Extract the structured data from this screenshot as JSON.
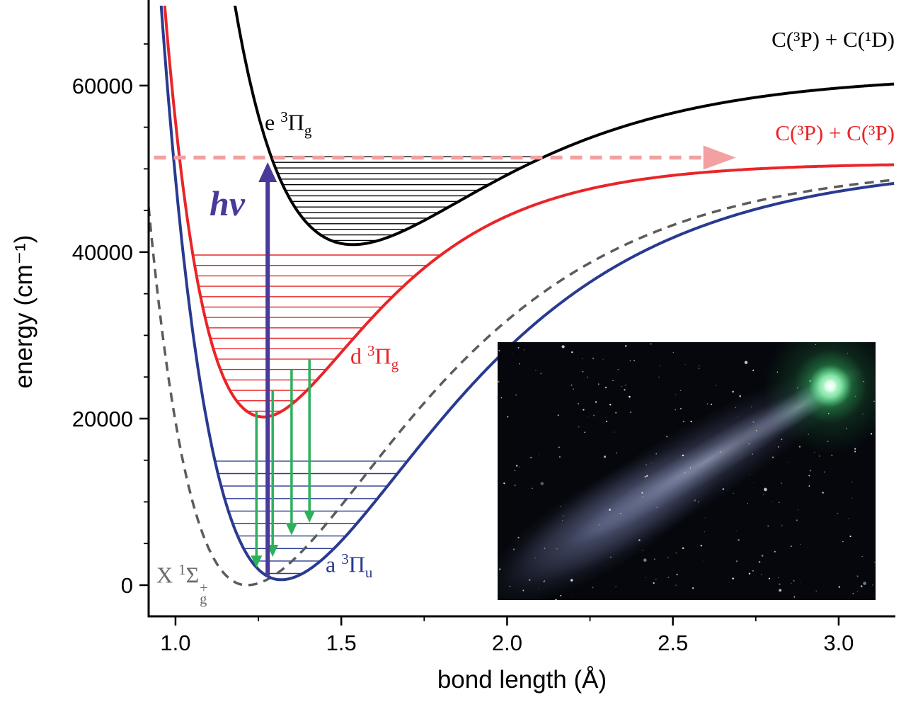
{
  "chart_data": {
    "type": "line",
    "title": "",
    "xlabel": "bond length (Å)",
    "ylabel": "energy (cm⁻¹)",
    "xlim": [
      0.919,
      3.171
    ],
    "ylim": [
      -3745,
      69600
    ],
    "x_ticks": [
      1.0,
      1.5,
      2.0,
      2.5,
      3.0
    ],
    "x_tick_labels": [
      "1.0",
      "1.5",
      "2.0",
      "2.5",
      "3.0"
    ],
    "x_minor_ticks": [
      1.25,
      1.75,
      2.25,
      2.75
    ],
    "y_ticks": [
      0,
      20000,
      40000,
      60000
    ],
    "y_tick_labels": [
      "0",
      "20000",
      "40000",
      "60000"
    ],
    "y_minor_ticks": [
      5000,
      10000,
      15000,
      25000,
      30000,
      35000,
      45000,
      50000,
      55000,
      65000
    ],
    "curve_model": "V(r) = T0 + De*(1-exp(-a*(r-re)))^2, separate a for inner/outer wall",
    "series": [
      {
        "id": "X",
        "name": "X ¹Σg⁺ ground state",
        "color": "#5c5c5c",
        "width": 3.5,
        "dash": "13 9",
        "morse": {
          "re": 1.215,
          "T0": 0,
          "De": 50700,
          "a_in": 2.25,
          "a_out": 2.0
        }
      },
      {
        "id": "a",
        "name": "a ³Πu",
        "color": "#293a90",
        "width": 4,
        "morse": {
          "re": 1.318,
          "T0": 650,
          "De": 50050,
          "a_in": 2.15,
          "a_out": 2.0
        }
      },
      {
        "id": "d",
        "name": "d ³Πg",
        "color": "#e92528",
        "width": 4,
        "morse": {
          "re": 1.266,
          "T0": 20200,
          "De": 30500,
          "a_in": 2.75,
          "a_out": 3.0
        }
      },
      {
        "id": "e",
        "name": "e ³Πg",
        "color": "#000000",
        "width": 4,
        "morse": {
          "re": 1.535,
          "T0": 40900,
          "De": 20400,
          "a_in": 2.2,
          "a_out": 2.2
        }
      }
    ],
    "vibrational_levels": [
      {
        "state": "a",
        "energies": [
          1400,
          2900,
          4400,
          5900,
          7400,
          8900,
          10400,
          11900,
          13400,
          14900
        ]
      },
      {
        "state": "d",
        "energies": [
          20900,
          22150,
          23400,
          24650,
          25900,
          27150,
          28400,
          29650,
          30900,
          32150,
          33400,
          34650,
          35900,
          37150,
          38400,
          39650
        ]
      },
      {
        "state": "e",
        "energies": [
          41400,
          42070,
          42740,
          43410,
          44080,
          44750,
          45420,
          46090,
          46760,
          47430,
          48100,
          48770,
          49440,
          50110,
          50780,
          51450
        ]
      }
    ],
    "arrows": {
      "excitation": {
        "label": "hν",
        "r": 1.278,
        "E_from": 950,
        "E_to": 50800,
        "color": "#473a99"
      },
      "emission_color": "#2cb05c",
      "emission": [
        {
          "r": 1.244,
          "E_from": 20900,
          "E_to": 2100
        },
        {
          "r": 1.293,
          "E_from": 23400,
          "E_to": 3400
        },
        {
          "r": 1.35,
          "E_from": 25900,
          "E_to": 6000
        },
        {
          "r": 1.404,
          "E_from": 27150,
          "E_to": 7500
        }
      ],
      "dissociation": {
        "E": 51350,
        "r_from": 0.935,
        "r_to": 2.69,
        "color": "#f2a0a0"
      }
    },
    "asymptote_labels": [
      {
        "text": "C(³P) + C(¹D)",
        "color": "#000000"
      },
      {
        "text": "C(³P) + C(³P)",
        "color": "#e92528"
      }
    ],
    "state_labels": {
      "e": {
        "pre": "e ",
        "sup": "3",
        "sym": "Π",
        "sub": "g"
      },
      "d": {
        "pre": "d ",
        "sup": "3",
        "sym": "Π",
        "sub": "g"
      },
      "a": {
        "pre": "a ",
        "sup": "3",
        "sym": "Π",
        "sub": "u"
      },
      "X": {
        "pre": "X ",
        "sup": "1",
        "sym": "Σ",
        "sub": "g",
        "sup2": "+"
      }
    }
  },
  "inset": {
    "alt": "telescope photograph of a bright green comet with a long diffuse tail across a star field"
  }
}
